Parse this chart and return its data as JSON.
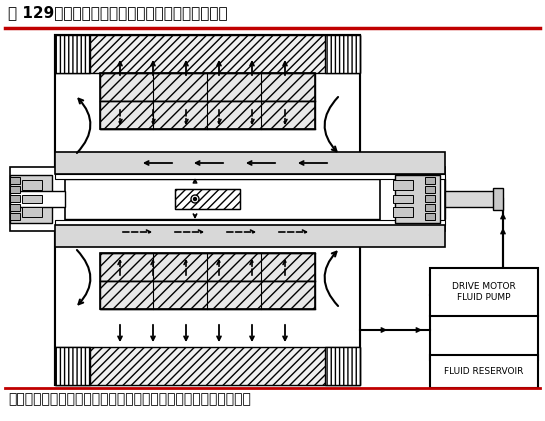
{
  "title": "图 129：电机低效制热模式润滑油和热流量示意图",
  "source_text": "资料来源：《特斯拉电动汽车热管理技术发展趋势》（胡志林等）",
  "bg_color": "#ffffff",
  "title_color": "#000000",
  "title_fontsize": 11,
  "source_fontsize": 10,
  "label_drive_motor": "DRIVE MOTOR\nFLUID PUMP",
  "label_fluid_reservoir": "FLUID RESERVOIR",
  "red_line_color": "#c00000",
  "diagram_color": "#000000",
  "light_gray": "#d8d8d8",
  "hatch_gray": "#c0c0c0"
}
